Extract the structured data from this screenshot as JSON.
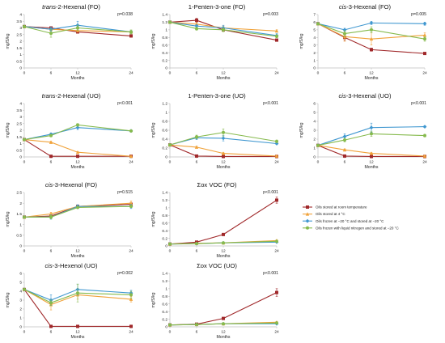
{
  "chart_data": [
    {
      "type": "line",
      "title_prefix": "trans",
      "title": "-2-Hexenal (FO)",
      "p_value": "p=0.038",
      "ylabel": "mg/S/kg",
      "xlabel": "Months",
      "x": [
        0,
        6,
        12,
        24
      ],
      "ylim": [
        0,
        4
      ],
      "yticks": [
        "0",
        "0.5",
        "1",
        "1.5",
        "2",
        "2.5",
        "3",
        "3.5",
        "4"
      ],
      "series": [
        {
          "name": "Oils stored at room temperature",
          "values": [
            3.1,
            3.0,
            2.7,
            2.4
          ],
          "err": [
            0.1,
            0.1,
            0.1,
            0.1
          ]
        },
        {
          "name": "Oils stored at 4 °C",
          "values": [
            3.1,
            2.9,
            2.8,
            2.7
          ],
          "err": [
            0.1,
            0.1,
            0.1,
            0.1
          ]
        },
        {
          "name": "Oils frozen at −20 °C and stored at −20 °C",
          "values": [
            3.1,
            2.9,
            3.2,
            2.7
          ],
          "err": [
            0.1,
            0.15,
            0.3,
            0.1
          ]
        },
        {
          "name": "Oils frozen with liquid nitrogen and stored at −20 °C",
          "values": [
            3.1,
            2.6,
            3.0,
            2.7
          ],
          "err": [
            0.1,
            0.3,
            0.2,
            0.15
          ]
        }
      ]
    },
    {
      "type": "line",
      "title_prefix": "",
      "title": "1-Penten-3-one (FO)",
      "p_value": "p=0.003",
      "ylabel": "mg/S/kg",
      "xlabel": "Months",
      "x": [
        0,
        6,
        12,
        24
      ],
      "ylim": [
        0,
        1.4
      ],
      "yticks": [
        "0",
        "0.2",
        "0.4",
        "0.6",
        "0.8",
        "1",
        "1.2",
        "1.4"
      ],
      "series": [
        {
          "name": "Oils stored at room temperature",
          "values": [
            1.2,
            1.25,
            1.0,
            0.73
          ],
          "err": [
            0.02,
            0.05,
            0.03,
            0.02
          ]
        },
        {
          "name": "Oils stored at 4 °C",
          "values": [
            1.2,
            1.15,
            1.05,
            0.97
          ],
          "err": [
            0.02,
            0.04,
            0.05,
            0.03
          ]
        },
        {
          "name": "Oils frozen at −20 °C and stored at −20 °C",
          "values": [
            1.2,
            1.1,
            1.05,
            0.85
          ],
          "err": [
            0.02,
            0.04,
            0.07,
            0.05
          ]
        },
        {
          "name": "Oils frozen with liquid nitrogen and stored at −20 °C",
          "values": [
            1.2,
            1.03,
            1.0,
            0.83
          ],
          "err": [
            0.02,
            0.04,
            0.05,
            0.04
          ]
        }
      ]
    },
    {
      "type": "line",
      "title_prefix": "cis",
      "title": "-3-Hexenal (FO)",
      "p_value": "p=0.005",
      "ylabel": "mg/S/kg",
      "xlabel": "Months",
      "x": [
        0,
        6,
        12,
        24
      ],
      "ylim": [
        0,
        7
      ],
      "yticks": [
        "0",
        "1",
        "2",
        "3",
        "4",
        "5",
        "6",
        "7"
      ],
      "series": [
        {
          "name": "Oils stored at room temperature",
          "values": [
            5.8,
            4.0,
            2.4,
            1.9
          ],
          "err": [
            0.1,
            0.4,
            0.2,
            0.1
          ]
        },
        {
          "name": "Oils stored at 4 °C",
          "values": [
            5.8,
            4.1,
            3.8,
            4.3
          ],
          "err": [
            0.1,
            0.6,
            0.8,
            0.3
          ]
        },
        {
          "name": "Oils frozen at −20 °C and stored at −20 °C",
          "values": [
            5.8,
            5.0,
            5.9,
            5.8
          ],
          "err": [
            0.1,
            0.2,
            0.2,
            0.2
          ]
        },
        {
          "name": "Oils frozen with liquid nitrogen and stored at −20 °C",
          "values": [
            5.8,
            4.5,
            5.0,
            3.8
          ],
          "err": [
            0.1,
            0.4,
            0.4,
            0.3
          ]
        }
      ]
    },
    {
      "type": "line",
      "title_prefix": "trans",
      "title": "-2-Hexenal (UO)",
      "p_value": "p<0.001",
      "ylabel": "mg/S/kg",
      "xlabel": "Months",
      "x": [
        0,
        6,
        12,
        24
      ],
      "ylim": [
        0,
        4
      ],
      "yticks": [
        "0",
        "0.5",
        "1",
        "1.5",
        "2",
        "2.5",
        "3",
        "3.5",
        "4"
      ],
      "series": [
        {
          "name": "Oils stored at room temperature",
          "values": [
            1.3,
            0.05,
            0.05,
            0.05
          ],
          "err": [
            0.05,
            0.02,
            0.02,
            0.02
          ]
        },
        {
          "name": "Oils stored at 4 °C",
          "values": [
            1.3,
            1.1,
            0.35,
            0.05
          ],
          "err": [
            0.05,
            0.08,
            0.05,
            0.02
          ]
        },
        {
          "name": "Oils frozen at −20 °C and stored at −20 °C",
          "values": [
            1.3,
            1.7,
            2.2,
            1.95
          ],
          "err": [
            0.05,
            0.1,
            0.15,
            0.05
          ]
        },
        {
          "name": "Oils frozen with liquid nitrogen and stored at −20 °C",
          "values": [
            1.3,
            1.6,
            2.4,
            1.95
          ],
          "err": [
            0.05,
            0.1,
            0.1,
            0.05
          ]
        }
      ]
    },
    {
      "type": "line",
      "title_prefix": "",
      "title": "1-Penten-3-one (UO)",
      "p_value": "p<0.001",
      "ylabel": "mg/S/kg",
      "xlabel": "Months",
      "x": [
        0,
        6,
        12,
        24
      ],
      "ylim": [
        0,
        1.2
      ],
      "yticks": [
        "0",
        "0.2",
        "0.4",
        "0.6",
        "0.8",
        "1",
        "1.2"
      ],
      "series": [
        {
          "name": "Oils stored at room temperature",
          "values": [
            0.27,
            0.02,
            0.01,
            0.01
          ],
          "err": [
            0.02,
            0.01,
            0.01,
            0.01
          ]
        },
        {
          "name": "Oils stored at 4 °C",
          "values": [
            0.27,
            0.22,
            0.08,
            0.02
          ],
          "err": [
            0.02,
            0.02,
            0.02,
            0.01
          ]
        },
        {
          "name": "Oils frozen at −20 °C and stored at −20 °C",
          "values": [
            0.27,
            0.43,
            0.42,
            0.3
          ],
          "err": [
            0.02,
            0.04,
            0.06,
            0.02
          ]
        },
        {
          "name": "Oils frozen with liquid nitrogen and stored at −20 °C",
          "values": [
            0.27,
            0.45,
            0.55,
            0.35
          ],
          "err": [
            0.02,
            0.04,
            0.08,
            0.03
          ]
        }
      ]
    },
    {
      "type": "line",
      "title_prefix": "cis",
      "title": "-3-Hexenal (UO)",
      "p_value": "p<0.001",
      "ylabel": "mg/S/kg",
      "xlabel": "Months",
      "x": [
        0,
        6,
        12,
        24
      ],
      "ylim": [
        0,
        6
      ],
      "yticks": [
        "0",
        "1",
        "2",
        "3",
        "4",
        "5",
        "6"
      ],
      "series": [
        {
          "name": "Oils stored at room temperature",
          "values": [
            1.3,
            0.1,
            0.05,
            0.05
          ],
          "err": [
            0.1,
            0.05,
            0.03,
            0.03
          ]
        },
        {
          "name": "Oils stored at 4 °C",
          "values": [
            1.3,
            0.8,
            0.4,
            0.1
          ],
          "err": [
            0.1,
            0.1,
            0.1,
            0.05
          ]
        },
        {
          "name": "Oils frozen at −20 °C and stored at −20 °C",
          "values": [
            1.3,
            2.3,
            3.3,
            3.4
          ],
          "err": [
            0.1,
            0.3,
            0.5,
            0.1
          ]
        },
        {
          "name": "Oils frozen with liquid nitrogen and stored at −20 °C",
          "values": [
            1.3,
            1.9,
            2.6,
            2.4
          ],
          "err": [
            0.1,
            0.2,
            0.3,
            0.15
          ]
        }
      ]
    },
    {
      "type": "line",
      "title_prefix": "cis",
      "title": "-3-Hexenol (FO)",
      "p_value": "p=0.515",
      "ylabel": "mg/S/kg",
      "xlabel": "Months",
      "x": [
        0,
        6,
        12,
        24
      ],
      "ylim": [
        0,
        2.5
      ],
      "yticks": [
        "0",
        "0.5",
        "1",
        "1.5",
        "2",
        "2.5"
      ],
      "series": [
        {
          "name": "Oils stored at room temperature",
          "values": [
            1.35,
            1.4,
            1.85,
            1.95
          ],
          "err": [
            0.05,
            0.08,
            0.05,
            0.05
          ]
        },
        {
          "name": "Oils stored at 4 °C",
          "values": [
            1.35,
            1.5,
            1.85,
            2.0
          ],
          "err": [
            0.05,
            0.08,
            0.05,
            0.1
          ]
        },
        {
          "name": "Oils frozen at −20 °C and stored at −20 °C",
          "values": [
            1.35,
            1.35,
            1.85,
            1.85
          ],
          "err": [
            0.05,
            0.1,
            0.08,
            0.1
          ]
        },
        {
          "name": "Oils frozen with liquid nitrogen and stored at −20 °C",
          "values": [
            1.35,
            1.35,
            1.8,
            1.85
          ],
          "err": [
            0.05,
            0.08,
            0.05,
            0.05
          ]
        }
      ]
    },
    {
      "type": "line",
      "title_prefix": "",
      "title": "Σox VOC (FO)",
      "p_value": "p<0.001",
      "ylabel": "mg/S/kg",
      "xlabel": "Months",
      "x": [
        0,
        6,
        12,
        24
      ],
      "ylim": [
        0,
        1.4
      ],
      "yticks": [
        "0",
        "0.2",
        "0.4",
        "0.6",
        "0.8",
        "1",
        "1.2",
        "1.4"
      ],
      "series": [
        {
          "name": "Oils stored at room temperature",
          "values": [
            0.05,
            0.1,
            0.3,
            1.2
          ],
          "err": [
            0.01,
            0.02,
            0.03,
            0.08
          ]
        },
        {
          "name": "Oils stored at 4 °C",
          "values": [
            0.05,
            0.07,
            0.08,
            0.14
          ],
          "err": [
            0.01,
            0.01,
            0.01,
            0.02
          ]
        },
        {
          "name": "Oils frozen at −20 °C and stored at −20 °C",
          "values": [
            0.05,
            0.06,
            0.08,
            0.1
          ],
          "err": [
            0.01,
            0.01,
            0.01,
            0.01
          ]
        },
        {
          "name": "Oils frozen with liquid nitrogen and stored at −20 °C",
          "values": [
            0.05,
            0.06,
            0.08,
            0.12
          ],
          "err": [
            0.01,
            0.01,
            0.01,
            0.02
          ]
        }
      ]
    },
    {
      "type": "line",
      "title_prefix": "cis",
      "title": "-3-Hexenol (UO)",
      "p_value": "p=0.002",
      "ylabel": "mg/S/kg",
      "xlabel": "Months",
      "x": [
        0,
        6,
        12,
        24
      ],
      "ylim": [
        0,
        6
      ],
      "yticks": [
        "0",
        "1",
        "2",
        "3",
        "4",
        "5",
        "6"
      ],
      "series": [
        {
          "name": "Oils stored at room temperature",
          "values": [
            4.2,
            0.05,
            0.05,
            0.05
          ],
          "err": [
            0.1,
            0.02,
            0.02,
            0.02
          ]
        },
        {
          "name": "Oils stored at 4 °C",
          "values": [
            4.2,
            2.5,
            3.6,
            3.1
          ],
          "err": [
            0.1,
            0.6,
            0.5,
            0.3
          ]
        },
        {
          "name": "Oils frozen at −20 °C and stored at −20 °C",
          "values": [
            4.2,
            3.0,
            4.2,
            3.8
          ],
          "err": [
            0.1,
            0.6,
            0.6,
            0.3
          ]
        },
        {
          "name": "Oils frozen with liquid nitrogen and stored at −20 °C",
          "values": [
            4.2,
            2.7,
            3.8,
            3.6
          ],
          "err": [
            0.1,
            0.3,
            1.0,
            0.4
          ]
        }
      ]
    },
    {
      "type": "line",
      "title_prefix": "",
      "title": "Σox VOC (UO)",
      "p_value": "p<0.001",
      "ylabel": "mg/S/kg",
      "xlabel": "Months",
      "x": [
        0,
        6,
        12,
        24
      ],
      "ylim": [
        0,
        1.4
      ],
      "yticks": [
        "0",
        "0.2",
        "0.4",
        "0.6",
        "0.8",
        "1",
        "1.2",
        "1.4"
      ],
      "series": [
        {
          "name": "Oils stored at room temperature",
          "values": [
            0.05,
            0.07,
            0.22,
            0.9
          ],
          "err": [
            0.01,
            0.01,
            0.03,
            0.1
          ]
        },
        {
          "name": "Oils stored at 4 °C",
          "values": [
            0.05,
            0.06,
            0.08,
            0.12
          ],
          "err": [
            0.01,
            0.01,
            0.01,
            0.02
          ]
        },
        {
          "name": "Oils frozen at −20 °C and stored at −20 °C",
          "values": [
            0.05,
            0.06,
            0.08,
            0.08
          ],
          "err": [
            0.01,
            0.01,
            0.01,
            0.01
          ]
        },
        {
          "name": "Oils frozen with liquid nitrogen and stored at −20 °C",
          "values": [
            0.05,
            0.06,
            0.08,
            0.1
          ],
          "err": [
            0.01,
            0.01,
            0.01,
            0.01
          ]
        }
      ]
    }
  ],
  "legend": {
    "entries": [
      {
        "label": "Oils stored at room temperature",
        "color": "#A0282A",
        "marker": "square"
      },
      {
        "label": "Oils stored at 4 °C",
        "color": "#F0A23A",
        "marker": "triangle"
      },
      {
        "label": "Oils frozen at −20 °C and stored at −20 °C",
        "color": "#3F97D0",
        "marker": "diamond"
      },
      {
        "label": "Oils frozen with liquid nitrogen and stored at −20 °C",
        "color": "#86BA4D",
        "marker": "circle"
      }
    ]
  },
  "style": {
    "axis_color": "#bfbfbf",
    "grid": false
  }
}
